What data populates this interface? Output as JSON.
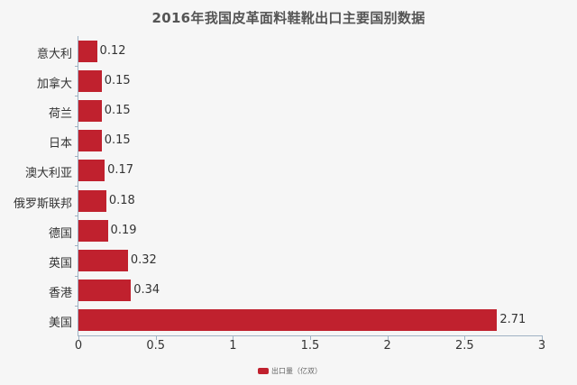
{
  "chart_data": {
    "type": "bar",
    "orientation": "horizontal",
    "title": "2016年我国皮革面料鞋靴出口主要国别数据",
    "categories": [
      "意大利",
      "加拿大",
      "荷兰",
      "日本",
      "澳大利亚",
      "俄罗斯联邦",
      "德国",
      "英国",
      "香港",
      "美国"
    ],
    "series": [
      {
        "name": "出口量（亿双）",
        "values": [
          0.12,
          0.15,
          0.15,
          0.15,
          0.17,
          0.18,
          0.19,
          0.32,
          0.34,
          2.71
        ],
        "color": "#c0212e"
      }
    ],
    "value_labels": [
      "0.12",
      "0.15",
      "0.15",
      "0.15",
      "0.17",
      "0.18",
      "0.19",
      "0.32",
      "0.34",
      "2.71"
    ],
    "xlabel": "",
    "ylabel": "",
    "xlim": [
      0,
      3
    ],
    "x_ticks": [
      "0",
      "0.5",
      "1",
      "1.5",
      "2",
      "2.5",
      "3"
    ],
    "grid": false,
    "legend_position": "bottom"
  },
  "legend": {
    "label": "出口量（亿双）"
  }
}
